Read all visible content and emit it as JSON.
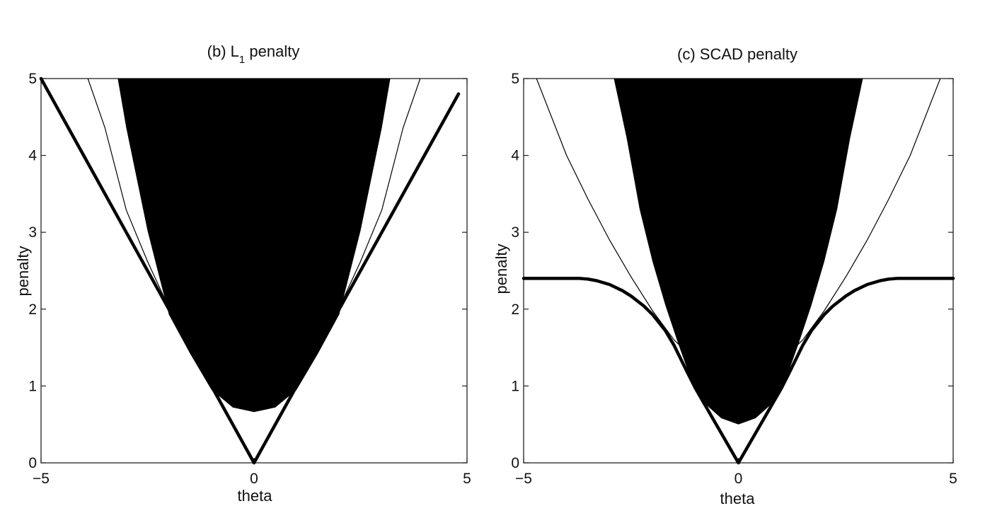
{
  "chart_data": [
    {
      "type": "line",
      "title_prefix": "(b) L",
      "title_subscript": "1",
      "title_suffix": " penalty",
      "xlabel": "theta",
      "ylabel": "penalty",
      "xlim": [
        -5,
        5
      ],
      "ylim": [
        0,
        5
      ],
      "xticks": [
        -5,
        0,
        5
      ],
      "yticks": [
        0,
        1,
        2,
        3,
        4,
        5
      ],
      "grid": false,
      "legend": "none",
      "series": [
        {
          "style": "thick",
          "x": [
            -5,
            -4.5,
            -4,
            -3,
            -2,
            -1,
            0,
            1,
            2,
            3,
            4,
            4.8
          ],
          "y": [
            5,
            4.5,
            4,
            3,
            2,
            1,
            0,
            1,
            2,
            3,
            4,
            4.8
          ]
        },
        {
          "style": "thin",
          "x": [
            -3.9,
            -3.5,
            -3,
            -2.5,
            -2,
            -1.5,
            -1,
            -0.5,
            0,
            0.5,
            1,
            1.5,
            2,
            2.5,
            3,
            3.5,
            3.9
          ],
          "y": [
            5.0,
            4.36,
            3.29,
            2.62,
            2.02,
            1.58,
            1.27,
            1.09,
            1.04,
            1.09,
            1.27,
            1.58,
            2.02,
            2.62,
            3.29,
            4.36,
            5.0
          ]
        },
        {
          "style": "dashed",
          "x": [
            -3.2,
            -3,
            -2.5,
            -2,
            -1.5,
            -1,
            -0.5,
            0,
            0.5,
            1,
            1.5,
            2,
            2.5,
            3,
            3.2
          ],
          "y": [
            5.0,
            4.36,
            3.02,
            1.93,
            1.42,
            0.95,
            0.72,
            0.66,
            0.72,
            0.95,
            1.42,
            1.93,
            3.02,
            4.36,
            5.0
          ]
        }
      ]
    },
    {
      "type": "line",
      "title": "(c) SCAD penalty",
      "xlabel": "theta",
      "ylabel": "penalty",
      "xlim": [
        -5,
        5
      ],
      "ylim": [
        0,
        5
      ],
      "xticks": [
        -5,
        0,
        5
      ],
      "yticks": [
        0,
        1,
        2,
        3,
        4,
        5
      ],
      "grid": false,
      "legend": "none",
      "series": [
        {
          "style": "thick",
          "x": [
            -5,
            -3.7,
            -3.5,
            -3.3,
            -3,
            -2.7,
            -2.5,
            -2.2,
            -2,
            -1.7,
            -1.5,
            -1.2,
            -1,
            -0.6,
            0,
            0.6,
            1,
            1.2,
            1.5,
            1.7,
            2,
            2.2,
            2.5,
            2.7,
            3,
            3.3,
            3.5,
            3.7,
            5
          ],
          "y": [
            2.4,
            2.4,
            2.39,
            2.37,
            2.32,
            2.24,
            2.17,
            2.04,
            1.93,
            1.72,
            1.53,
            1.19,
            0.97,
            0.58,
            0,
            0.58,
            0.97,
            1.19,
            1.53,
            1.72,
            1.93,
            2.04,
            2.17,
            2.24,
            2.32,
            2.37,
            2.39,
            2.4,
            2.4
          ]
        },
        {
          "style": "thin",
          "x": [
            -4.7,
            -4,
            -3.5,
            -3,
            -2.5,
            -2,
            -1.5,
            -1,
            -0.5,
            0,
            0.5,
            1,
            1.5,
            2,
            2.5,
            3,
            3.5,
            4,
            4.7
          ],
          "y": [
            5.0,
            4.0,
            3.43,
            2.9,
            2.42,
            1.98,
            1.6,
            1.33,
            1.17,
            1.12,
            1.17,
            1.33,
            1.6,
            1.98,
            2.42,
            2.9,
            3.43,
            4.0,
            5.0
          ]
        },
        {
          "style": "dashed",
          "x": [
            -2.9,
            -2.6,
            -2.3,
            -2,
            -1.7,
            -1.4,
            -1.1,
            -0.8,
            -0.4,
            0,
            0.4,
            0.8,
            1.1,
            1.4,
            1.7,
            2,
            2.3,
            2.6,
            2.9
          ],
          "y": [
            5.0,
            4.22,
            3.3,
            2.62,
            2.05,
            1.55,
            1.08,
            0.78,
            0.58,
            0.5,
            0.58,
            0.78,
            1.08,
            1.55,
            2.05,
            2.62,
            3.3,
            4.22,
            5.0
          ]
        }
      ]
    }
  ]
}
